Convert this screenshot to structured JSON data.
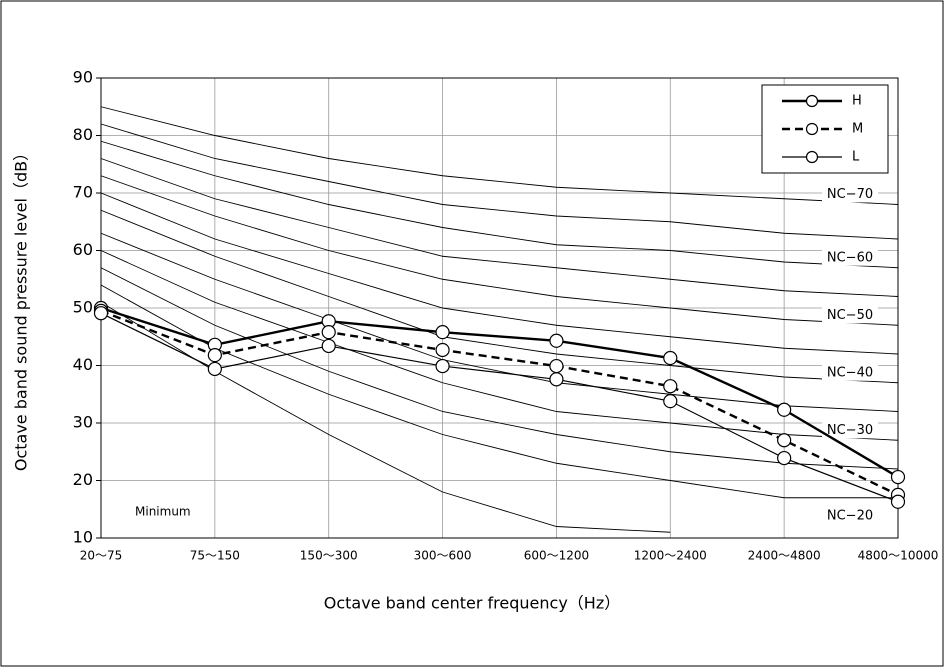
{
  "chart_data": {
    "type": "line",
    "xlabel": "Octave band center frequency（Hz）",
    "ylabel": "Octave band sound pressure level（dB）",
    "categories": [
      "20～75",
      "75～150",
      "150～300",
      "300～600",
      "600～1200",
      "1200～2400",
      "2400～4800",
      "4800～10000"
    ],
    "ylim": [
      10,
      90
    ],
    "yticks": [
      10,
      20,
      30,
      40,
      50,
      60,
      70,
      80,
      90
    ],
    "grid": true,
    "legend": "upper right",
    "series": [
      {
        "name": "H",
        "color": "#000000",
        "values": [
          50,
          43.6,
          47.7,
          45.8,
          44.3,
          41.3,
          32.3,
          20.6
        ]
      },
      {
        "name": "M",
        "color": "#000000",
        "values": [
          49.5,
          41.8,
          45.8,
          42.7,
          39.9,
          36.4,
          27.0,
          17.5
        ]
      },
      {
        "name": "L",
        "color": "#000000",
        "values": [
          49.1,
          39.4,
          43.4,
          39.9,
          37.6,
          33.8,
          23.9,
          16.3
        ]
      }
    ],
    "nc_curves": [
      [
        85,
        80,
        76,
        73,
        71,
        70,
        69,
        68
      ],
      [
        82,
        76,
        72,
        68,
        66,
        65,
        63,
        62
      ],
      [
        79,
        73,
        68,
        64,
        61,
        60,
        58,
        57
      ],
      [
        76,
        69,
        64,
        59,
        57,
        55,
        53,
        52
      ],
      [
        73,
        66,
        60,
        55,
        52,
        50,
        48,
        47
      ],
      [
        70,
        62,
        56,
        50,
        47,
        45,
        43,
        42
      ],
      [
        67,
        59,
        52,
        45,
        42,
        40,
        38,
        37
      ],
      [
        63,
        55,
        48,
        41,
        37,
        35,
        33,
        32
      ],
      [
        60,
        51,
        44,
        37,
        32,
        30,
        28,
        27
      ],
      [
        57,
        47,
        39,
        32,
        28,
        25,
        23,
        22
      ],
      [
        54,
        43,
        35,
        28,
        23,
        20,
        17,
        17
      ],
      [
        51,
        39,
        28,
        18,
        12,
        11,
        null,
        null
      ]
    ],
    "nc_labels": [
      "NC−70",
      "NC−60",
      "NC−50",
      "NC−40",
      "NC−30",
      "NC−20"
    ],
    "annotation": "Minimum"
  }
}
